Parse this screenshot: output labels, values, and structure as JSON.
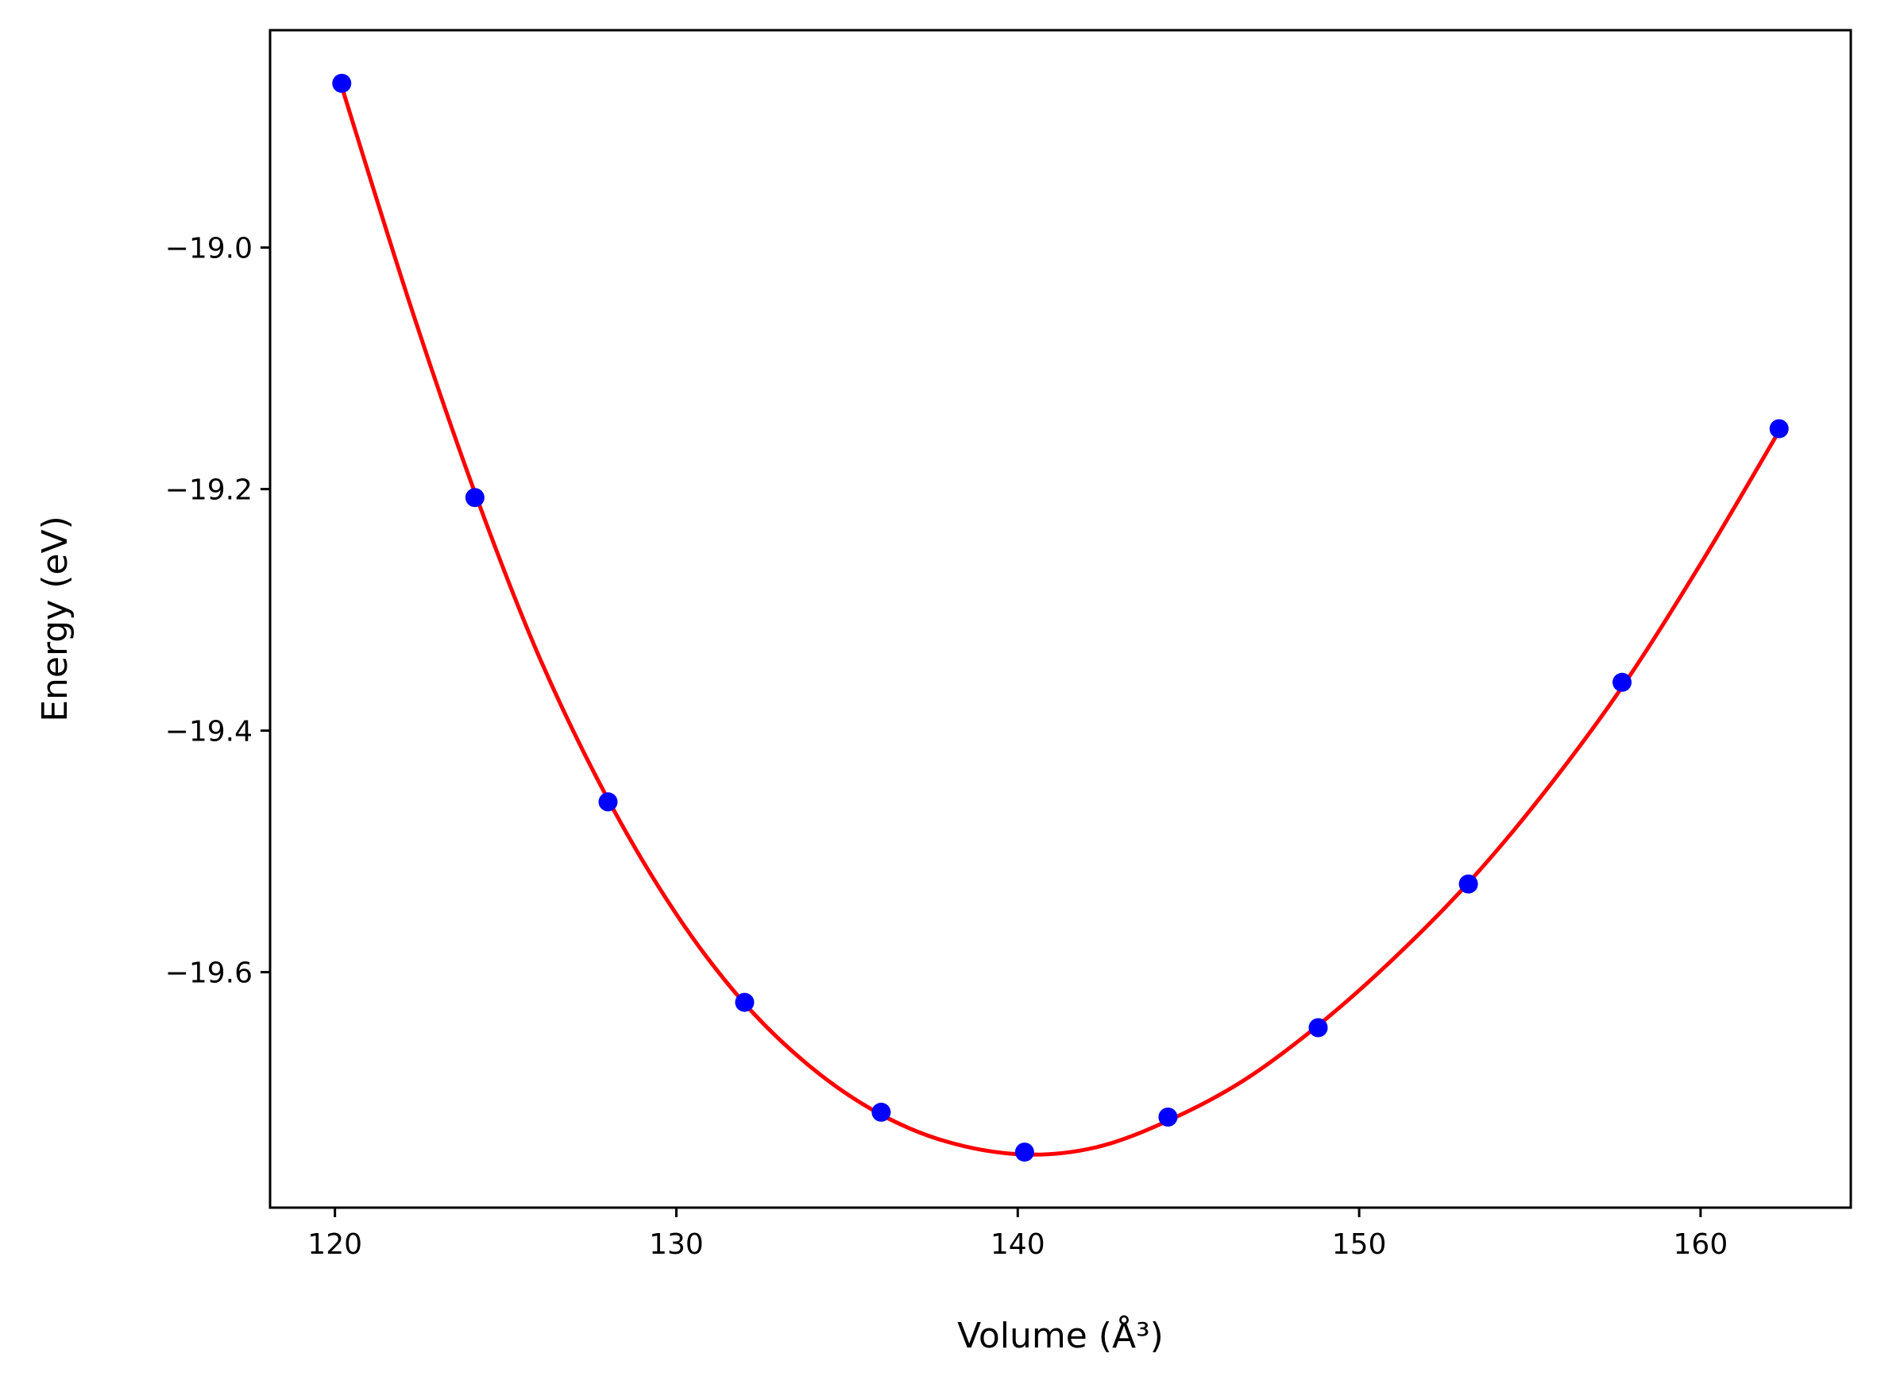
{
  "chart_data": {
    "type": "scatter",
    "title": "",
    "xlabel": "Volume (Å³)",
    "ylabel": "Energy (eV)",
    "xlim": [
      118.1,
      164.4
    ],
    "ylim": [
      -19.795,
      -18.82
    ],
    "x_ticks": [
      120,
      130,
      140,
      150,
      160
    ],
    "x_tick_labels": [
      "120",
      "130",
      "140",
      "150",
      "160"
    ],
    "y_ticks": [
      -19.0,
      -19.2,
      -19.4,
      -19.6
    ],
    "y_tick_labels": [
      "−19.0",
      "−19.2",
      "−19.4",
      "−19.6"
    ],
    "grid": false,
    "legend": false,
    "series": [
      {
        "kind": "markers",
        "color": "#0000ff",
        "x": [
          120.2,
          124.1,
          128.0,
          132.0,
          136.0,
          140.2,
          144.4,
          148.8,
          153.2,
          157.7,
          162.3
        ],
        "y": [
          -18.864,
          -19.207,
          -19.459,
          -19.625,
          -19.716,
          -19.749,
          -19.72,
          -19.646,
          -19.527,
          -19.36,
          -19.15
        ]
      },
      {
        "kind": "fit-line",
        "color": "#ff0000",
        "x": [
          120.2,
          122.2,
          124.1,
          126.0,
          128.0,
          130.0,
          132.0,
          134.0,
          136.0,
          138.0,
          140.2,
          142.3,
          144.4,
          146.6,
          148.8,
          151.0,
          153.2,
          155.4,
          157.7,
          160.0,
          162.3
        ],
        "y": [
          -18.867,
          -19.047,
          -19.203,
          -19.34,
          -19.457,
          -19.552,
          -19.626,
          -19.68,
          -19.718,
          -19.741,
          -19.751,
          -19.745,
          -19.723,
          -19.69,
          -19.644,
          -19.589,
          -19.526,
          -19.452,
          -19.364,
          -19.262,
          -19.152
        ]
      }
    ]
  }
}
